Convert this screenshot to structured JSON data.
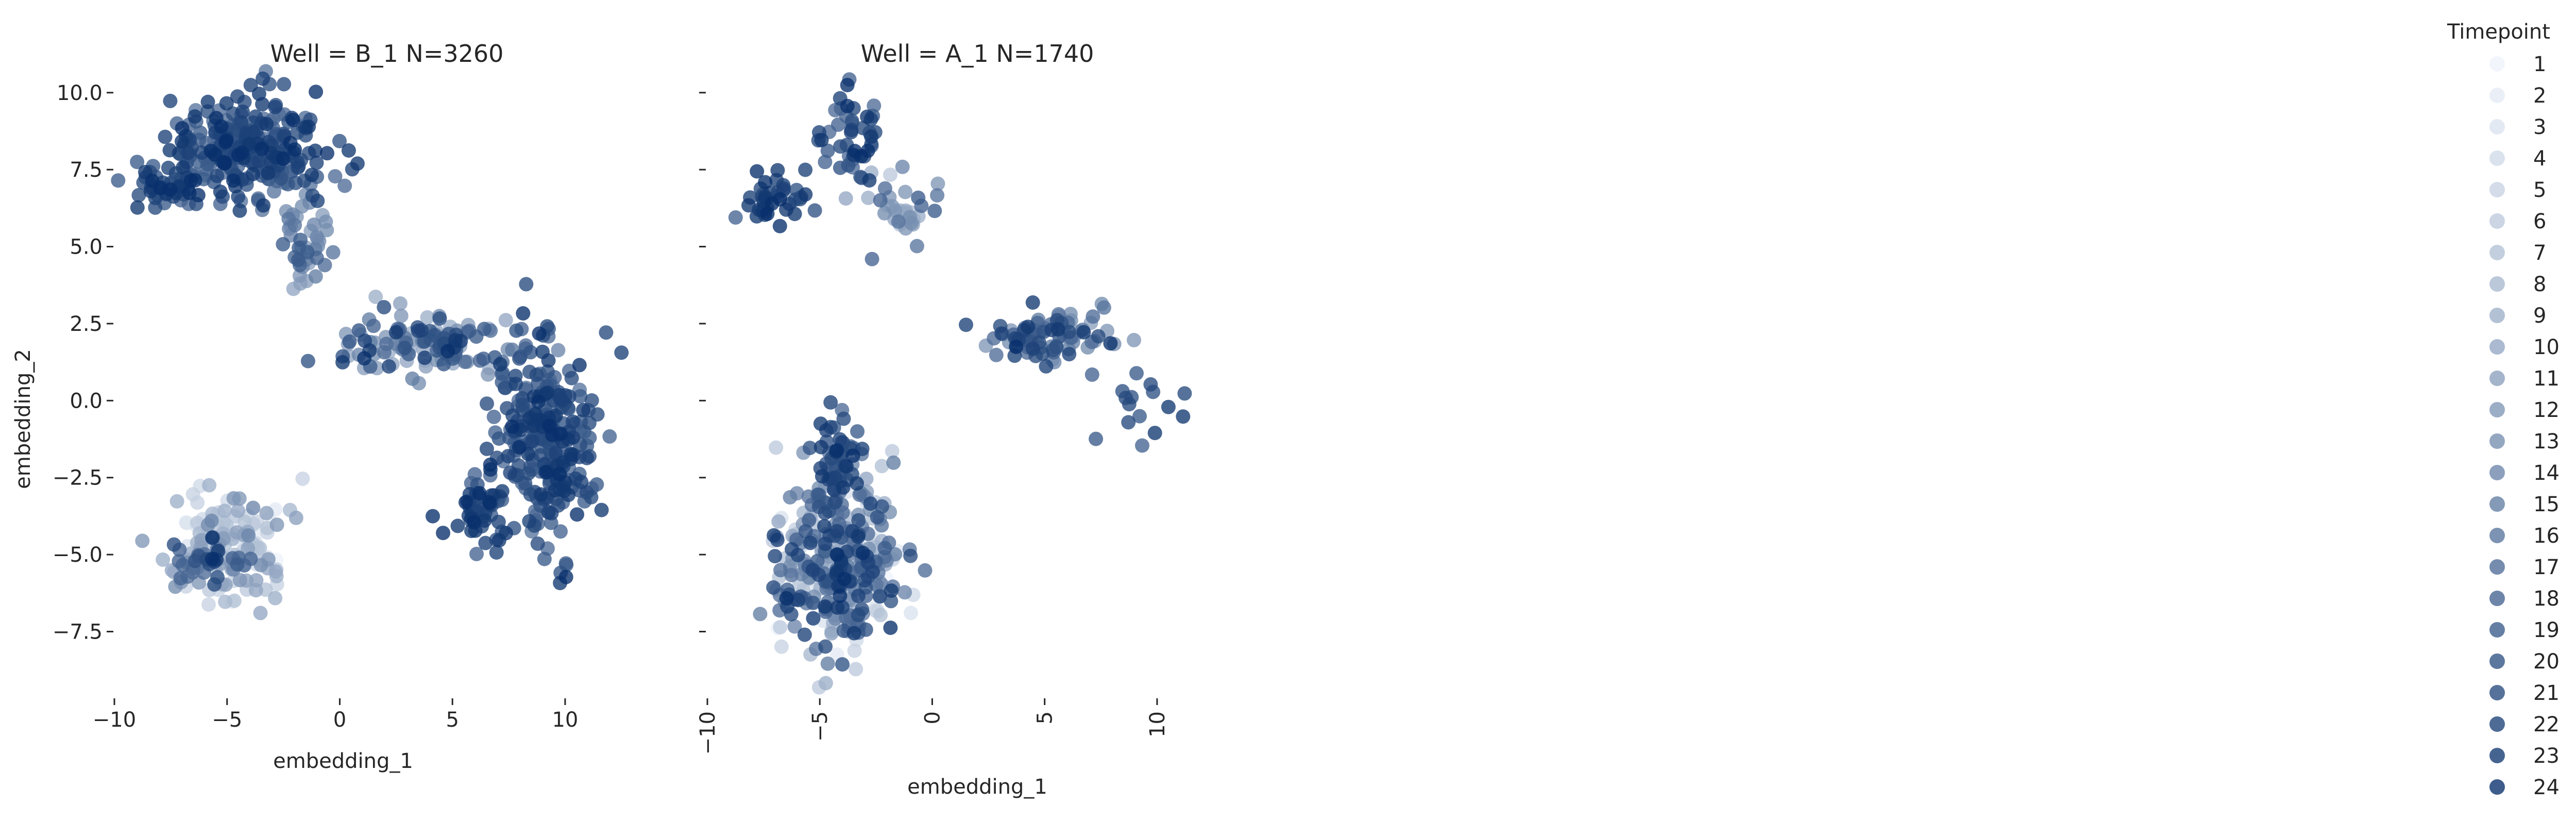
{
  "chart_data": [
    {
      "type": "scatter",
      "title": "Well = B_1 N=3260",
      "xlabel": "embedding_1",
      "ylabel": "embedding_2",
      "xlim": [
        -10,
        13.5
      ],
      "ylim": [
        -9.5,
        11
      ],
      "xticks": [
        -10,
        -5,
        0,
        5,
        10
      ],
      "xtick_labels": [
        "−10",
        "−5",
        "0",
        "5",
        "10"
      ],
      "yticks": [
        -7.5,
        -5.0,
        -2.5,
        0.0,
        2.5,
        5.0,
        7.5,
        10.0
      ],
      "ytick_labels": [
        "−7.5",
        "−5.0",
        "−2.5",
        "0.0",
        "2.5",
        "5.0",
        "7.5",
        "10.0"
      ],
      "grid": false,
      "clusters": [
        {
          "name": "upper-left",
          "cx": -4.0,
          "cy": 8.3,
          "sx": 2.3,
          "sy": 1.1,
          "tmin": 16,
          "tmax": 24,
          "n": 260
        },
        {
          "name": "upper-left-arm",
          "cx": -7.5,
          "cy": 6.9,
          "sx": 1.0,
          "sy": 0.4,
          "tmin": 18,
          "tmax": 24,
          "n": 45
        },
        {
          "name": "upper-left-tail",
          "cx": -1.5,
          "cy": 5.2,
          "sx": 0.9,
          "sy": 0.9,
          "tmin": 10,
          "tmax": 20,
          "n": 45
        },
        {
          "name": "right-arm",
          "cx": 3.5,
          "cy": 1.8,
          "sx": 2.6,
          "sy": 0.6,
          "tmin": 8,
          "tmax": 24,
          "n": 120
        },
        {
          "name": "right-body",
          "cx": 9.0,
          "cy": -1.2,
          "sx": 1.5,
          "sy": 2.3,
          "tmin": 16,
          "tmax": 24,
          "n": 280
        },
        {
          "name": "right-lower",
          "cx": 6.2,
          "cy": -3.6,
          "sx": 1.0,
          "sy": 0.7,
          "tmin": 18,
          "tmax": 24,
          "n": 50
        },
        {
          "name": "lower-left",
          "cx": -5.0,
          "cy": -4.7,
          "sx": 1.8,
          "sy": 1.2,
          "tmin": 1,
          "tmax": 14,
          "n": 160
        },
        {
          "name": "lower-left-dark",
          "cx": -5.5,
          "cy": -5.2,
          "sx": 1.2,
          "sy": 0.6,
          "tmin": 16,
          "tmax": 24,
          "n": 30
        }
      ]
    },
    {
      "type": "scatter",
      "title": "Well = A_1 N=1740",
      "xlabel": "embedding_1",
      "ylabel": "",
      "xlim": [
        -10,
        12.5
      ],
      "ylim": [
        -9.5,
        11
      ],
      "xticks": [
        -10,
        -5,
        0,
        5,
        10
      ],
      "xtick_labels": [
        "−10",
        "−5",
        "0",
        "5",
        "10"
      ],
      "yticks": [
        -7.5,
        -5.0,
        -2.5,
        0.0,
        2.5,
        5.0,
        7.5,
        10.0
      ],
      "ytick_labels": [
        "",
        "",
        "",
        "",
        "",
        "",
        "",
        ""
      ],
      "grid": false,
      "clusters": [
        {
          "name": "upper-blob",
          "cx": -3.5,
          "cy": 8.7,
          "sx": 0.9,
          "sy": 1.0,
          "tmin": 16,
          "tmax": 24,
          "n": 45
        },
        {
          "name": "upper-arm-left",
          "cx": -7.0,
          "cy": 6.6,
          "sx": 1.0,
          "sy": 0.5,
          "tmin": 18,
          "tmax": 24,
          "n": 40
        },
        {
          "name": "upper-arm-right",
          "cx": -1.5,
          "cy": 6.2,
          "sx": 1.4,
          "sy": 0.8,
          "tmin": 6,
          "tmax": 20,
          "n": 35
        },
        {
          "name": "mid-arm",
          "cx": 5.0,
          "cy": 2.0,
          "sx": 2.0,
          "sy": 0.6,
          "tmin": 10,
          "tmax": 24,
          "n": 90
        },
        {
          "name": "mid-arm-tail",
          "cx": 9.5,
          "cy": 0.0,
          "sx": 1.0,
          "sy": 0.9,
          "tmin": 18,
          "tmax": 24,
          "n": 15
        },
        {
          "name": "lower-blob",
          "cx": -4.2,
          "cy": -5.4,
          "sx": 1.8,
          "sy": 1.8,
          "tmin": 1,
          "tmax": 24,
          "n": 360
        },
        {
          "name": "lower-neck",
          "cx": -4.3,
          "cy": -1.8,
          "sx": 0.8,
          "sy": 1.0,
          "tmin": 16,
          "tmax": 24,
          "n": 55
        }
      ]
    }
  ],
  "legend": {
    "title": "Timepoint",
    "placement": "right",
    "cmap_light": "#eef4fb",
    "cmap_dark": "#08306b",
    "entries": [
      {
        "label": "1"
      },
      {
        "label": "2"
      },
      {
        "label": "3"
      },
      {
        "label": "4"
      },
      {
        "label": "5"
      },
      {
        "label": "6"
      },
      {
        "label": "7"
      },
      {
        "label": "8"
      },
      {
        "label": "9"
      },
      {
        "label": "10"
      },
      {
        "label": "11"
      },
      {
        "label": "12"
      },
      {
        "label": "13"
      },
      {
        "label": "14"
      },
      {
        "label": "15"
      },
      {
        "label": "16"
      },
      {
        "label": "17"
      },
      {
        "label": "18"
      },
      {
        "label": "19"
      },
      {
        "label": "20"
      },
      {
        "label": "21"
      },
      {
        "label": "22"
      },
      {
        "label": "23"
      },
      {
        "label": "24"
      }
    ]
  }
}
